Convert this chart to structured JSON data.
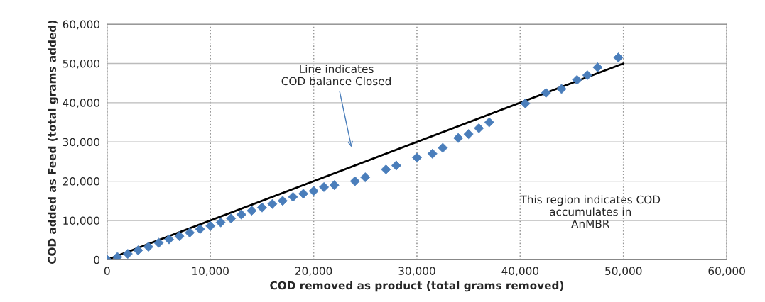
{
  "chart_data": {
    "type": "scatter",
    "xlabel": "COD removed as product (total grams removed)",
    "ylabel": "COD added as Feed (total grams added)",
    "xlim": [
      0,
      60000
    ],
    "ylim": [
      0,
      60000
    ],
    "xticks": [
      {
        "value": 0,
        "label": "0"
      },
      {
        "value": 10000,
        "label": "10,000"
      },
      {
        "value": 20000,
        "label": "20,000"
      },
      {
        "value": 30000,
        "label": "30,000"
      },
      {
        "value": 40000,
        "label": "40,000"
      },
      {
        "value": 50000,
        "label": "50,000"
      },
      {
        "value": 60000,
        "label": "60,000"
      }
    ],
    "yticks": [
      {
        "value": 0,
        "label": "0"
      },
      {
        "value": 10000,
        "label": "10,000"
      },
      {
        "value": 20000,
        "label": "20,000"
      },
      {
        "value": 30000,
        "label": "30,000"
      },
      {
        "value": 40000,
        "label": "40,000"
      },
      {
        "value": 50000,
        "label": "50,000"
      },
      {
        "value": 60000,
        "label": "60,000"
      }
    ],
    "grid": true,
    "marker": "diamond",
    "series": [
      {
        "color": "#4a7ebb",
        "x": [
          0,
          1000,
          2000,
          3000,
          4000,
          5000,
          6000,
          7000,
          8000,
          9000,
          10000,
          11000,
          12000,
          13000,
          14000,
          15000,
          16000,
          17000,
          18000,
          19000,
          20000,
          21000,
          22000,
          24000,
          25000,
          27000,
          28000,
          30000,
          31500,
          32500,
          34000,
          35000,
          36000,
          37000,
          40500,
          42500,
          44000,
          45500,
          46500,
          47500,
          49500
        ],
        "values": [
          0,
          700,
          1500,
          2400,
          3300,
          4300,
          5200,
          6000,
          6900,
          7800,
          8600,
          9500,
          10500,
          11500,
          12500,
          13300,
          14200,
          15000,
          16000,
          16800,
          17500,
          18500,
          19000,
          20000,
          21000,
          23000,
          24000,
          26000,
          27000,
          28500,
          31000,
          32000,
          33500,
          35000,
          39800,
          42500,
          43500,
          45800,
          47000,
          49000,
          51500
        ]
      },
      {
        "type": "line",
        "color": "#000000",
        "marker": "none",
        "x": [
          0,
          50000
        ],
        "values": [
          0,
          50000
        ]
      }
    ],
    "annotations": [
      "Line indicates\nCOD balance Closed",
      "This region indicates COD\naccumulates in\nAnMBR"
    ]
  }
}
